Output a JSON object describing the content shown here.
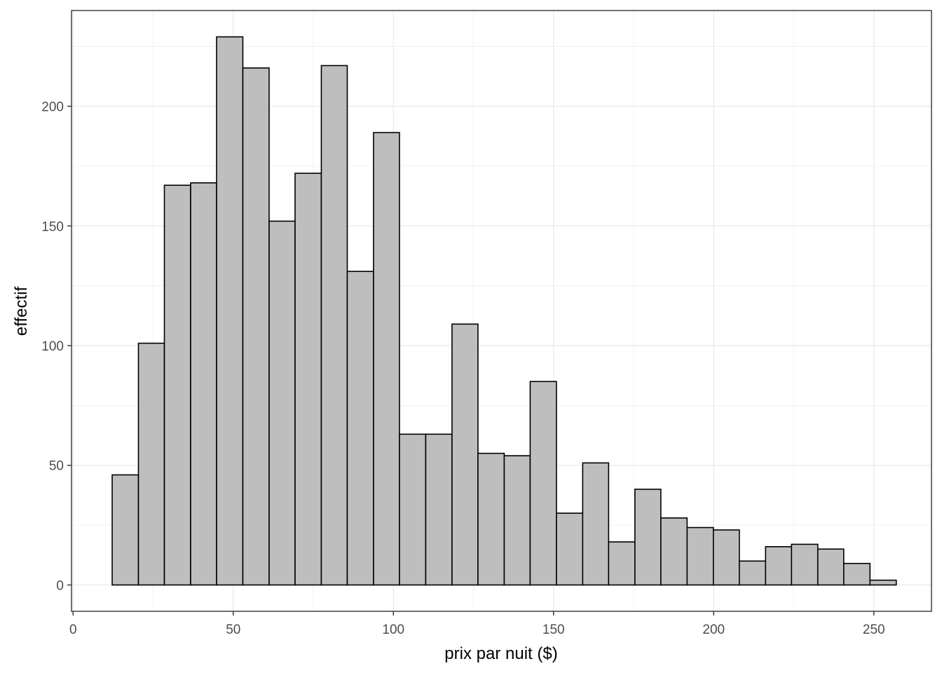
{
  "chart_data": {
    "type": "bar",
    "subtype": "histogram",
    "xlabel": "prix par nuit ($)",
    "ylabel": "effectif",
    "xlim": [
      -0.5,
      268
    ],
    "ylim": [
      -11,
      240
    ],
    "x_ticks": [
      0,
      50,
      100,
      150,
      200,
      250
    ],
    "x_tick_labels": [
      "0",
      "50",
      "100",
      "150",
      "200",
      "250"
    ],
    "y_ticks": [
      0,
      50,
      100,
      150,
      200
    ],
    "y_tick_labels": [
      "0",
      "50",
      "100",
      "150",
      "200"
    ],
    "grid": true,
    "bar_fill": "#bebebe",
    "bar_outline": "#000000",
    "panel_border": "#333333",
    "bins": [
      {
        "x0": 12.2,
        "x1": 20.4,
        "count": 46
      },
      {
        "x0": 20.4,
        "x1": 28.5,
        "count": 101
      },
      {
        "x0": 28.5,
        "x1": 36.7,
        "count": 167
      },
      {
        "x0": 36.7,
        "x1": 44.8,
        "count": 168
      },
      {
        "x0": 44.8,
        "x1": 53.0,
        "count": 229
      },
      {
        "x0": 53.0,
        "x1": 61.2,
        "count": 216
      },
      {
        "x0": 61.2,
        "x1": 69.3,
        "count": 152
      },
      {
        "x0": 69.3,
        "x1": 77.5,
        "count": 172
      },
      {
        "x0": 77.5,
        "x1": 85.6,
        "count": 217
      },
      {
        "x0": 85.6,
        "x1": 93.8,
        "count": 131
      },
      {
        "x0": 93.8,
        "x1": 101.9,
        "count": 189
      },
      {
        "x0": 101.9,
        "x1": 110.1,
        "count": 63
      },
      {
        "x0": 110.1,
        "x1": 118.3,
        "count": 63
      },
      {
        "x0": 118.3,
        "x1": 126.4,
        "count": 109
      },
      {
        "x0": 126.4,
        "x1": 134.6,
        "count": 55
      },
      {
        "x0": 134.6,
        "x1": 142.7,
        "count": 54
      },
      {
        "x0": 142.7,
        "x1": 150.9,
        "count": 85
      },
      {
        "x0": 150.9,
        "x1": 159.1,
        "count": 30
      },
      {
        "x0": 159.1,
        "x1": 167.2,
        "count": 51
      },
      {
        "x0": 167.2,
        "x1": 175.4,
        "count": 18
      },
      {
        "x0": 175.4,
        "x1": 183.5,
        "count": 40
      },
      {
        "x0": 183.5,
        "x1": 191.7,
        "count": 28
      },
      {
        "x0": 191.7,
        "x1": 199.9,
        "count": 24
      },
      {
        "x0": 199.9,
        "x1": 208.0,
        "count": 23
      },
      {
        "x0": 208.0,
        "x1": 216.2,
        "count": 10
      },
      {
        "x0": 216.2,
        "x1": 224.3,
        "count": 16
      },
      {
        "x0": 224.3,
        "x1": 232.5,
        "count": 17
      },
      {
        "x0": 232.5,
        "x1": 240.6,
        "count": 15
      },
      {
        "x0": 240.6,
        "x1": 248.8,
        "count": 9
      },
      {
        "x0": 248.8,
        "x1": 257.0,
        "count": 2
      }
    ]
  }
}
